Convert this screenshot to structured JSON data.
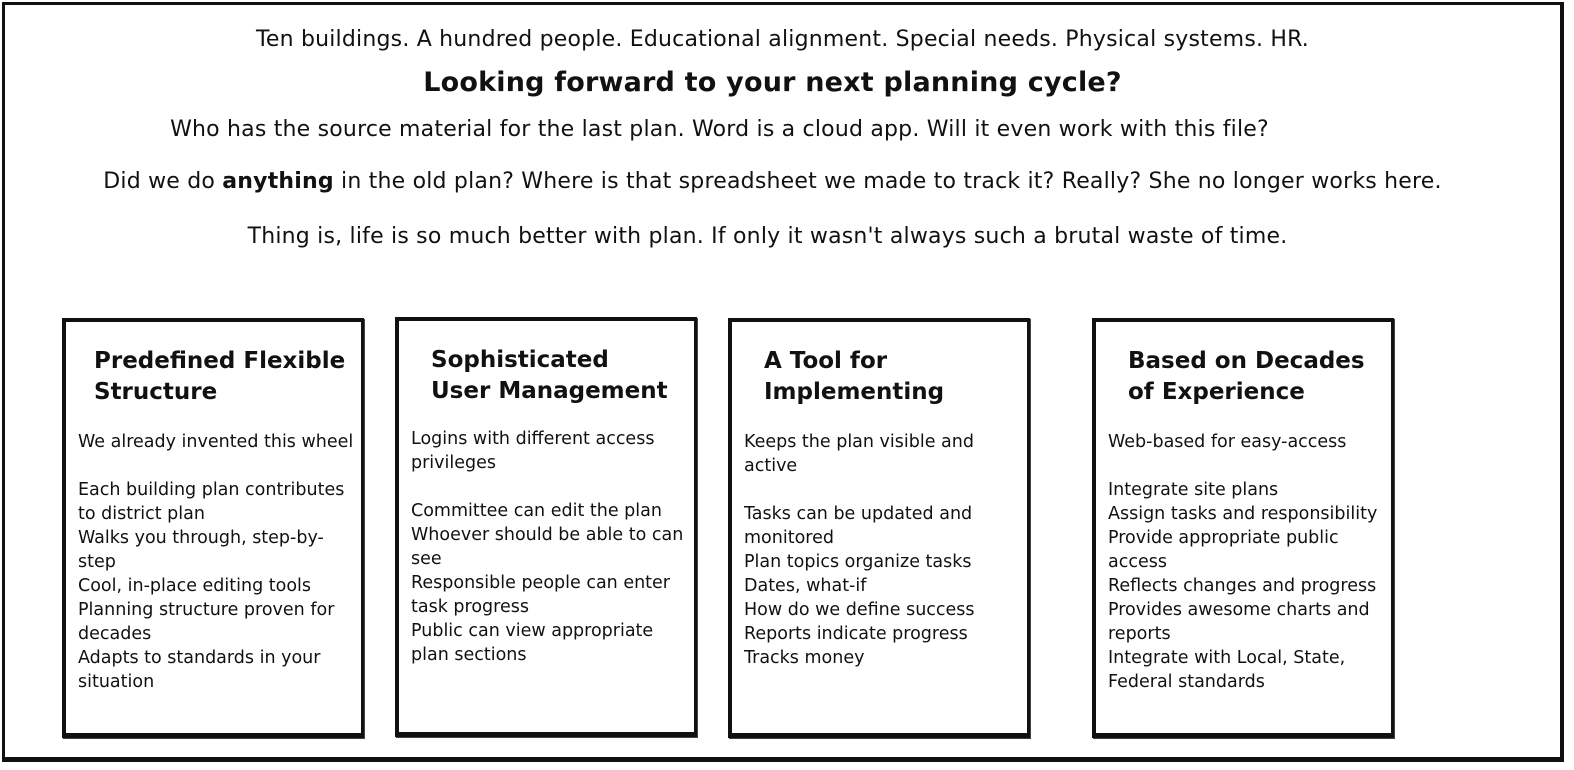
{
  "intro": {
    "tagline": "Ten buildings. A hundred people. Educational alignment. Special needs. Physical systems. HR.",
    "headline": "Looking forward to your next planning cycle?",
    "question_1": "Who has the source material for the last plan. Word is a cloud app. Will it even work with this file?",
    "question_2_before": "Did we do ",
    "question_2_bold": "anything",
    "question_2_after": " in the old plan? Where is that spreadsheet we made to track it? Really? She no longer works here.",
    "closing": "Thing is, life is so much better with plan. If only it wasn't always such a brutal waste of time."
  },
  "cards": [
    {
      "title": "Predefined Flexible\nStructure",
      "body": "We already invented this wheel\n\nEach building plan contributes to district plan\nWalks you through, step-by-step\nCool, in-place editing tools\nPlanning structure proven for decades\nAdapts to standards in your situation"
    },
    {
      "title": "Sophisticated\nUser Management",
      "body": "Logins with different access privileges\n\nCommittee can edit the plan\nWhoever should be able to can see\nResponsible people can enter task progress\nPublic can view appropriate plan sections"
    },
    {
      "title": "A Tool for\nImplementing",
      "body": "Keeps the plan visible and active\n\nTasks can be updated and monitored\nPlan topics organize tasks\nDates, what-if\nHow do we define success\nReports indicate progress\nTracks money"
    },
    {
      "title": "Based on Decades\nof Experience",
      "body": "Web-based for easy-access\n\nIntegrate site plans\nAssign tasks and responsibility\nProvide appropriate public access\nReflects changes and progress\nProvides awesome charts and reports\nIntegrate with Local, State, Federal standards"
    }
  ]
}
